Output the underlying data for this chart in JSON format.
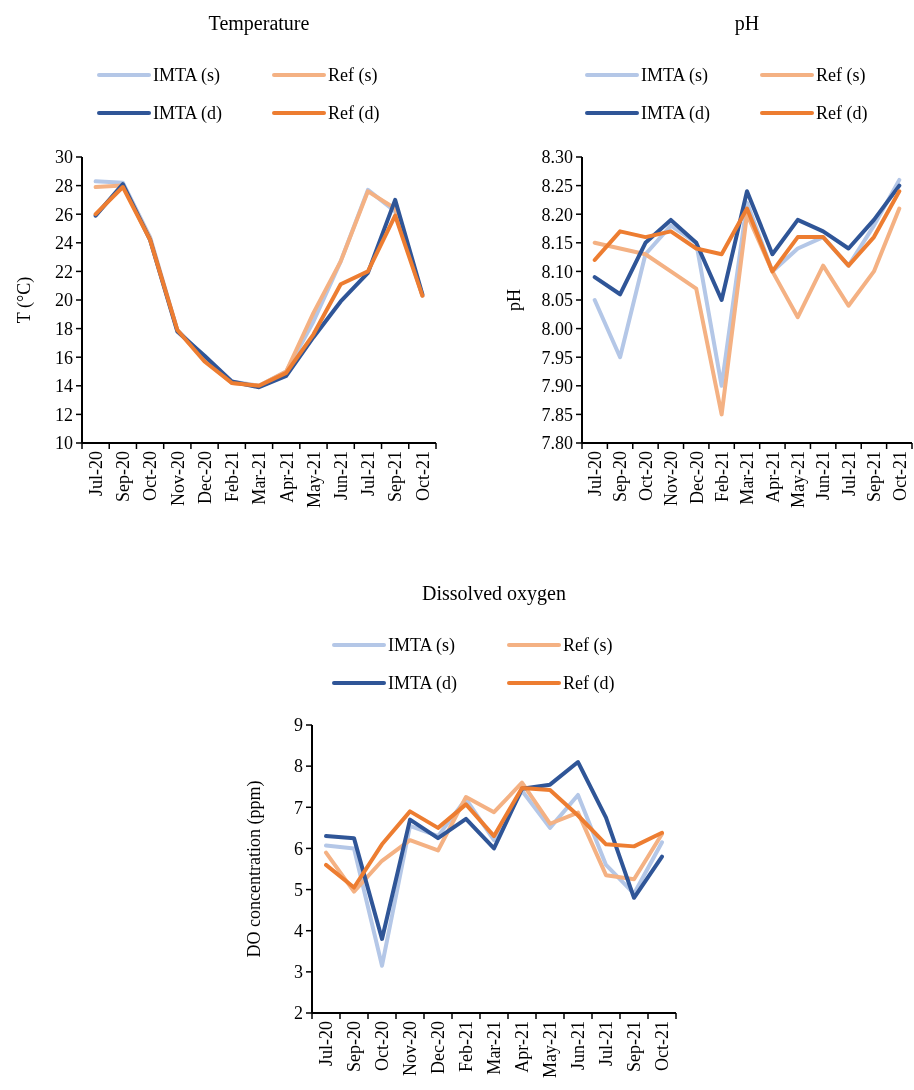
{
  "chart_data": [
    {
      "type": "line",
      "title": "Temperature",
      "ylabel": "T (°C)",
      "legend": "top",
      "grid": false,
      "line_style": "solid",
      "categories": [
        "Jul-20",
        "Sep-20",
        "Oct-20",
        "Nov-20",
        "Dec-20",
        "Feb-21",
        "Mar-21",
        "Apr-21",
        "May-21",
        "Jun-21",
        "Jul-21",
        "Sep-21",
        "Oct-21"
      ],
      "ylim": [
        10,
        30
      ],
      "yticks": [
        10,
        12,
        14,
        16,
        18,
        20,
        22,
        24,
        26,
        28,
        30
      ],
      "series": [
        {
          "name": "IMTA (s)",
          "color": "#b4c7e7",
          "values": [
            28.3,
            28.2,
            24.4,
            17.9,
            16.0,
            14.3,
            14.0,
            15.0,
            18.5,
            22.7,
            27.7,
            26.2,
            20.3
          ]
        },
        {
          "name": "Ref (s)",
          "color": "#f4b183",
          "values": [
            27.9,
            28.0,
            24.3,
            17.9,
            15.8,
            14.2,
            14.0,
            15.0,
            19.1,
            22.7,
            27.6,
            26.4,
            20.3
          ]
        },
        {
          "name": "IMTA (d)",
          "color": "#2f5597",
          "values": [
            25.9,
            28.1,
            24.2,
            17.8,
            16.1,
            14.3,
            13.9,
            14.7,
            17.4,
            19.9,
            21.9,
            27.0,
            20.4
          ]
        },
        {
          "name": "Ref (d)",
          "color": "#ed7d31",
          "values": [
            26.0,
            27.9,
            24.2,
            17.9,
            15.7,
            14.2,
            14.0,
            14.9,
            17.6,
            21.1,
            22.0,
            25.9,
            20.3
          ]
        }
      ]
    },
    {
      "type": "line",
      "title": "pH",
      "ylabel": "pH",
      "legend": "top",
      "grid": false,
      "line_style": "solid",
      "categories": [
        "Jul-20",
        "Sep-20",
        "Oct-20",
        "Nov-20",
        "Dec-20",
        "Feb-21",
        "Mar-21",
        "Apr-21",
        "May-21",
        "Jun-21",
        "Jul-21",
        "Sep-21",
        "Oct-21"
      ],
      "ylim": [
        7.8,
        8.3
      ],
      "yticks": [
        {
          "value": 7.8,
          "label": "7.80"
        },
        {
          "value": 7.85,
          "label": "7.85"
        },
        {
          "value": 7.9,
          "label": "7.90"
        },
        {
          "value": 7.95,
          "label": "7.95"
        },
        {
          "value": 8.0,
          "label": "8.00"
        },
        {
          "value": 8.05,
          "label": "8.05"
        },
        {
          "value": 8.1,
          "label": "8.10"
        },
        {
          "value": 8.15,
          "label": "8.15"
        },
        {
          "value": 8.2,
          "label": "8.20"
        },
        {
          "value": 8.25,
          "label": "8.25"
        },
        {
          "value": 8.3,
          "label": "8.30"
        }
      ],
      "series": [
        {
          "name": "IMTA (s)",
          "color": "#b4c7e7",
          "values": [
            8.05,
            7.95,
            8.13,
            8.18,
            8.15,
            7.9,
            8.22,
            8.1,
            8.14,
            8.16,
            8.11,
            8.18,
            8.26
          ]
        },
        {
          "name": "Ref (s)",
          "color": "#f4b183",
          "values": [
            8.15,
            8.14,
            8.13,
            8.1,
            8.07,
            7.85,
            8.2,
            8.1,
            8.02,
            8.11,
            8.04,
            8.1,
            8.21
          ]
        },
        {
          "name": "IMTA (d)",
          "color": "#2f5597",
          "values": [
            8.09,
            8.06,
            8.15,
            8.19,
            8.15,
            8.05,
            8.24,
            8.13,
            8.19,
            8.17,
            8.14,
            8.19,
            8.25
          ]
        },
        {
          "name": "Ref (d)",
          "color": "#ed7d31",
          "values": [
            8.12,
            8.17,
            8.16,
            8.17,
            8.14,
            8.13,
            8.21,
            8.1,
            8.16,
            8.16,
            8.11,
            8.16,
            8.24
          ]
        }
      ]
    },
    {
      "type": "line",
      "title": "Dissolved oxygen",
      "ylabel": "DO concentration (ppm)",
      "legend": "top",
      "grid": false,
      "line_style": "solid",
      "categories": [
        "Jul-20",
        "Sep-20",
        "Oct-20",
        "Nov-20",
        "Dec-20",
        "Feb-21",
        "Mar-21",
        "Apr-21",
        "May-21",
        "Jun-21",
        "Jul-21",
        "Sep-21",
        "Oct-21"
      ],
      "ylim": [
        2,
        9
      ],
      "yticks": [
        2,
        3,
        4,
        5,
        6,
        7,
        8,
        9
      ],
      "series": [
        {
          "name": "IMTA (s)",
          "color": "#b4c7e7",
          "values": [
            6.07,
            6.0,
            3.15,
            6.55,
            6.3,
            7.2,
            6.2,
            7.4,
            6.5,
            7.3,
            5.6,
            4.9,
            6.15
          ]
        },
        {
          "name": "Ref (s)",
          "color": "#f4b183",
          "values": [
            5.9,
            4.95,
            5.7,
            6.2,
            5.95,
            7.25,
            6.88,
            7.6,
            6.6,
            6.87,
            5.35,
            5.25,
            6.35
          ]
        },
        {
          "name": "IMTA (d)",
          "color": "#2f5597",
          "values": [
            6.3,
            6.25,
            3.8,
            6.7,
            6.25,
            6.72,
            6.0,
            7.45,
            7.55,
            8.1,
            6.75,
            4.8,
            5.8
          ]
        },
        {
          "name": "Ref (d)",
          "color": "#ed7d31",
          "values": [
            5.6,
            5.05,
            6.1,
            6.9,
            6.5,
            7.07,
            6.3,
            7.47,
            7.42,
            6.8,
            6.1,
            6.05,
            6.38
          ]
        }
      ]
    }
  ]
}
